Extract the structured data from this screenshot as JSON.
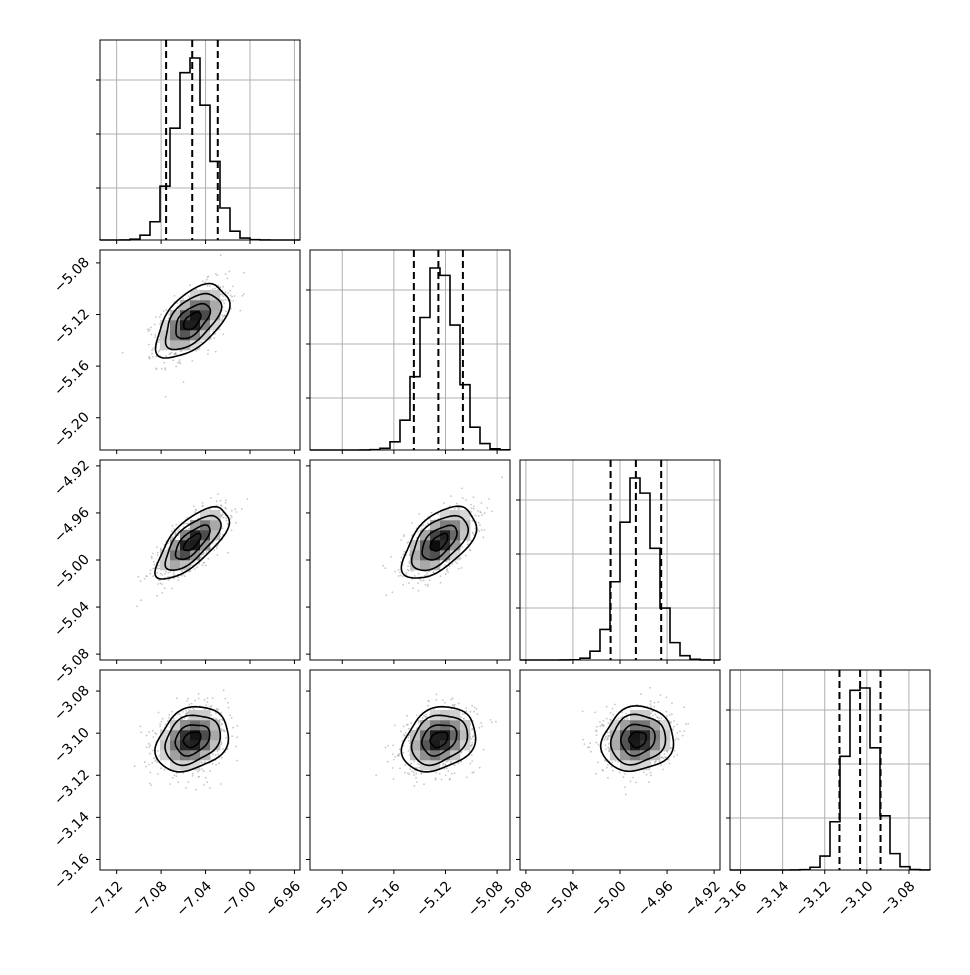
{
  "chart_data": {
    "type": "corner",
    "parameters": [
      {
        "index": 0,
        "xlim": [
          -7.135,
          -6.955
        ],
        "ticks": [
          -7.12,
          -7.08,
          -7.04,
          -7.0,
          -6.96
        ],
        "tick_labels": [
          "−7.12",
          "−7.08",
          "−7.04",
          "−7.00",
          "−6.96"
        ],
        "mean": -7.052,
        "sd": 0.0155,
        "quantiles": [
          -7.0755,
          -7.052,
          -7.029
        ]
      },
      {
        "index": 1,
        "xlim": [
          -5.225,
          -5.07
        ],
        "ticks": [
          -5.2,
          -5.16,
          -5.12,
          -5.08
        ],
        "tick_labels": [
          "−5.20",
          "−5.16",
          "−5.12",
          "−5.08"
        ],
        "mean": -5.125,
        "sd": 0.0135,
        "quantiles": [
          -5.1445,
          -5.1255,
          -5.1065
        ]
      },
      {
        "index": 2,
        "xlim": [
          -5.085,
          -4.915
        ],
        "ticks": [
          -5.08,
          -5.04,
          -5.0,
          -4.96,
          -4.92
        ],
        "tick_labels": [
          "−5.08",
          "−5.04",
          "−5.00",
          "−4.96",
          "−4.92"
        ],
        "mean": -4.985,
        "sd": 0.0145,
        "quantiles": [
          -5.008,
          -4.9865,
          -4.965
        ]
      },
      {
        "index": 3,
        "xlim": [
          -3.165,
          -3.07
        ],
        "ticks": [
          -3.16,
          -3.14,
          -3.12,
          -3.1,
          -3.08
        ],
        "tick_labels": [
          "−3.16",
          "−3.14",
          "−3.12",
          "−3.10",
          "−3.08"
        ],
        "mean": -3.103,
        "sd": 0.0073,
        "quantiles": [
          -3.113,
          -3.1032,
          -3.0935
        ]
      }
    ],
    "correlations": {
      "1_0": 0.55,
      "2_0": 0.7,
      "2_1": 0.55,
      "3_0": 0.25,
      "3_1": 0.25,
      "3_2": 0.1
    },
    "colors": {
      "line": "#000000",
      "grid": "#b0b0b0",
      "points": "#999999"
    },
    "grid": true,
    "title": "",
    "legend": "none"
  }
}
